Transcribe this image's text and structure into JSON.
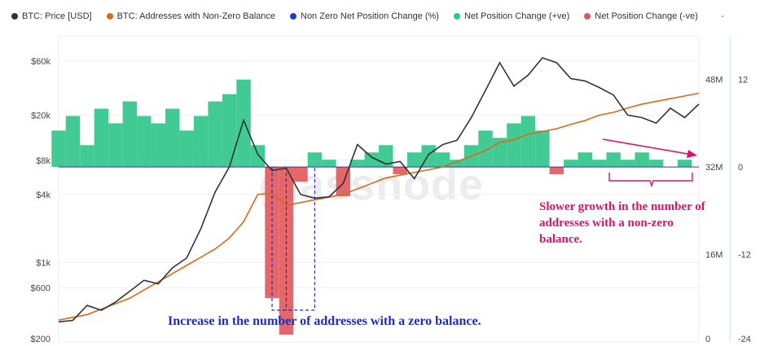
{
  "legend": [
    {
      "label": "BTC: Price [USD]",
      "color": "#333333"
    },
    {
      "label": "BTC: Addresses with Non-Zero Balance",
      "color": "#d86a1e"
    },
    {
      "label": "Non Zero Net Position Change (%)",
      "color": "#1f3fbf"
    },
    {
      "label": "Net Position Change (+ve)",
      "color": "#2ec48a"
    },
    {
      "label": "Net Position Change (-ve)",
      "color": "#e2565a"
    }
  ],
  "legend_extra": "-",
  "watermark": "glassnode",
  "annotations": {
    "pink": "Slower growth in the number of addresses with a non-zero balance.",
    "blue": "Increase in the number of addresses with a zero balance."
  },
  "chart_data": {
    "type": "line",
    "price_axis": {
      "ticks": [
        "$60k",
        "$20k",
        "$8k",
        "$4k",
        "$1k",
        "$600",
        "$200"
      ],
      "scale": "log",
      "range": [
        200,
        100000
      ]
    },
    "addresses_axis": {
      "ticks": [
        "48M",
        "32M",
        "16M",
        "0"
      ],
      "range": [
        0,
        56
      ]
    },
    "net_change_axis": {
      "ticks": [
        "12",
        "0",
        "-12",
        "-24"
      ],
      "range": [
        -24,
        18
      ]
    },
    "series": [
      {
        "name": "BTC: Price [USD]",
        "color": "#333333",
        "axis": "price",
        "values": [
          300,
          310,
          420,
          380,
          450,
          560,
          700,
          650,
          900,
          1100,
          2000,
          4200,
          7000,
          18000,
          9000,
          6500,
          6800,
          4000,
          3700,
          3800,
          5000,
          11000,
          8500,
          7400,
          7800,
          5500,
          9000,
          11000,
          12000,
          19000,
          33000,
          58000,
          36000,
          45000,
          64000,
          58000,
          42000,
          40000,
          35000,
          30000,
          20000,
          19000,
          17000,
          23000,
          19000,
          25000
        ]
      },
      {
        "name": "BTC: Addresses with Non-Zero Balance",
        "color": "#d86a1e",
        "axis": "addresses",
        "values": [
          4,
          4.5,
          5,
          6,
          7,
          8,
          9.5,
          11,
          12.5,
          14,
          15.5,
          17,
          19,
          22,
          27,
          27.2,
          25,
          25.5,
          26,
          26.5,
          27,
          28,
          29,
          30,
          30.5,
          31,
          31.5,
          32,
          33,
          34,
          35,
          36.5,
          37,
          38,
          38.5,
          39,
          39.8,
          40.5,
          41.5,
          42,
          42.8,
          43.5,
          44,
          44.5,
          45,
          45.5
        ]
      },
      {
        "name": "Non Zero Net Position Change (%)",
        "color": "#1f3fbf",
        "axis": "net_change",
        "values": [
          5,
          7,
          3,
          8,
          6,
          9,
          7,
          6,
          8,
          5,
          7,
          9,
          10,
          12,
          3,
          -18,
          -23,
          -2,
          2,
          1,
          -4,
          1,
          2,
          3,
          -1,
          2,
          3,
          2,
          1,
          3,
          5,
          4,
          6,
          7,
          5,
          -1,
          1,
          2,
          1,
          2,
          1,
          2,
          1,
          0,
          1,
          0
        ]
      }
    ]
  }
}
